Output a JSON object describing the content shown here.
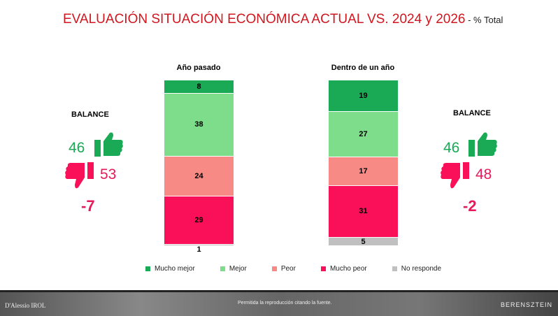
{
  "title": {
    "main": "EVALUACIÓN SITUACIÓN ECONÓMICA ACTUAL VS. 2024 y 2026",
    "suffix": " - % Total"
  },
  "chart_data": {
    "type": "bar",
    "stacked": true,
    "categories": [
      "Año pasado",
      "Dentro de un año"
    ],
    "series": [
      {
        "name": "Mucho mejor",
        "color": "#1aaa55",
        "values": [
          8,
          19
        ]
      },
      {
        "name": "Mejor",
        "color": "#7ddd8b",
        "values": [
          38,
          27
        ]
      },
      {
        "name": "Peor",
        "color": "#f88a86",
        "values": [
          24,
          17
        ]
      },
      {
        "name": "Mucho peor",
        "color": "#fa1058",
        "values": [
          29,
          31
        ]
      },
      {
        "name": "No responde",
        "color": "#c0c0c0",
        "values": [
          1,
          5
        ]
      }
    ],
    "ylim": [
      0,
      100
    ],
    "legend": "bottom"
  },
  "balance_left": {
    "label": "BALANCE",
    "positive": "46",
    "negative": "53",
    "net": "-7"
  },
  "balance_right": {
    "label": "BALANCE",
    "positive": "46",
    "negative": "48",
    "net": "-2"
  },
  "footer": {
    "text": "Permitida la reproducción citando la fuente.",
    "left_logo": "D'Alessio IROL",
    "right_logo": "BERENSZTEIN"
  }
}
